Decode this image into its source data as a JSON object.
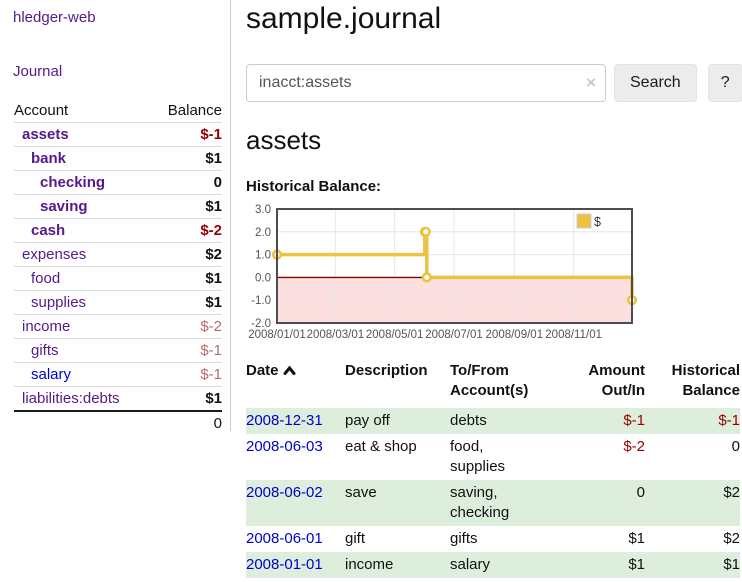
{
  "sidebar": {
    "brand": "hledger-web",
    "nav": {
      "journal": "Journal"
    },
    "accounts": {
      "headers": {
        "account": "Account",
        "balance": "Balance"
      },
      "rows": [
        {
          "name": "assets",
          "indent": 0,
          "bold": true,
          "balance": "$-1",
          "tone": "strong-neg"
        },
        {
          "name": "bank",
          "indent": 1,
          "bold": true,
          "balance": "$1",
          "tone": "pos"
        },
        {
          "name": "checking",
          "indent": 2,
          "bold": true,
          "balance": "0",
          "tone": "pos"
        },
        {
          "name": "saving",
          "indent": 2,
          "bold": true,
          "balance": "$1",
          "tone": "pos"
        },
        {
          "name": "cash",
          "indent": 1,
          "bold": true,
          "balance": "$-2",
          "tone": "strong-neg"
        },
        {
          "name": "expenses",
          "indent": 0,
          "bold": false,
          "balance": "$2",
          "tone": "pos"
        },
        {
          "name": "food",
          "indent": 1,
          "bold": false,
          "balance": "$1",
          "tone": "pos"
        },
        {
          "name": "supplies",
          "indent": 1,
          "bold": false,
          "balance": "$1",
          "tone": "pos"
        },
        {
          "name": "income",
          "indent": 0,
          "bold": false,
          "balance": "$-2",
          "tone": "soft-neg"
        },
        {
          "name": "gifts",
          "indent": 1,
          "bold": false,
          "balance": "$-1",
          "tone": "soft-neg"
        },
        {
          "name": "salary",
          "indent": 1,
          "bold": false,
          "balance": "$-1",
          "tone": "soft-neg",
          "link_color": "blue"
        },
        {
          "name": "liabilities:debts",
          "indent": 0,
          "bold": false,
          "balance": "$1",
          "tone": "pos"
        }
      ],
      "total": "0"
    }
  },
  "header": {
    "title": "sample.journal"
  },
  "search": {
    "query": "inacct:assets",
    "clear_icon": "×",
    "search_button": "Search",
    "help_button": "?"
  },
  "account_page": {
    "heading": "assets",
    "chart_title": "Historical Balance:"
  },
  "chart_data": {
    "type": "line",
    "line_style": "step",
    "title": "Historical Balance",
    "x_range": [
      "2008-01-01",
      "2008-12-31"
    ],
    "ylim": [
      -2.0,
      3.0
    ],
    "y_ticks": [
      3.0,
      2.0,
      1.0,
      0.0,
      -1.0,
      -2.0
    ],
    "x_ticks": [
      "2008/01/01",
      "2008/03/01",
      "2008/05/01",
      "2008/07/01",
      "2008/09/01",
      "2008/11/01"
    ],
    "grid": true,
    "legend": {
      "label": "$",
      "position": "top-right"
    },
    "series": [
      {
        "name": "$",
        "color": "#edc240",
        "points": [
          {
            "x": "2008-01-01",
            "y": 1
          },
          {
            "x": "2008-06-01",
            "y": 2
          },
          {
            "x": "2008-06-02",
            "y": 2
          },
          {
            "x": "2008-06-03",
            "y": 0
          },
          {
            "x": "2008-12-31",
            "y": -1
          }
        ]
      }
    ],
    "negative_region_fill": "#fcdfdf",
    "zero_line_color": "#8b0000",
    "grid_color": "#e6e6e6",
    "border_color": "#4d4d4d",
    "tick_text_color": "#545454"
  },
  "register": {
    "headers": {
      "date": "Date",
      "description": "Description",
      "account": "To/From Account(s)",
      "amount": "Amount Out/In",
      "balance": "Historical Balance"
    },
    "sort": {
      "column": "date",
      "direction": "asc"
    },
    "rows": [
      {
        "date": "2008-12-31",
        "description": "pay off",
        "accounts": "debts",
        "amount": "$-1",
        "amount_neg": true,
        "balance": "$-1",
        "balance_neg": true,
        "striped": true
      },
      {
        "date": "2008-06-03",
        "description": "eat & shop",
        "accounts": "food, supplies",
        "amount": "$-2",
        "amount_neg": true,
        "balance": "0",
        "balance_neg": false,
        "striped": false
      },
      {
        "date": "2008-06-02",
        "description": "save",
        "accounts": "saving, checking",
        "amount": "0",
        "amount_neg": false,
        "balance": "$2",
        "balance_neg": false,
        "striped": true
      },
      {
        "date": "2008-06-01",
        "description": "gift",
        "accounts": "gifts",
        "amount": "$1",
        "amount_neg": false,
        "balance": "$2",
        "balance_neg": false,
        "striped": false
      },
      {
        "date": "2008-01-01",
        "description": "income",
        "accounts": "salary",
        "amount": "$1",
        "amount_neg": false,
        "balance": "$1",
        "balance_neg": false,
        "striped": true
      }
    ]
  },
  "colors": {
    "link_purple": "#551a8b",
    "link_blue": "#0000cc",
    "negative_strong": "#990000",
    "negative_soft": "#b96c6c",
    "row_stripe_green": "#ddeedd",
    "series_gold": "#edc240"
  }
}
